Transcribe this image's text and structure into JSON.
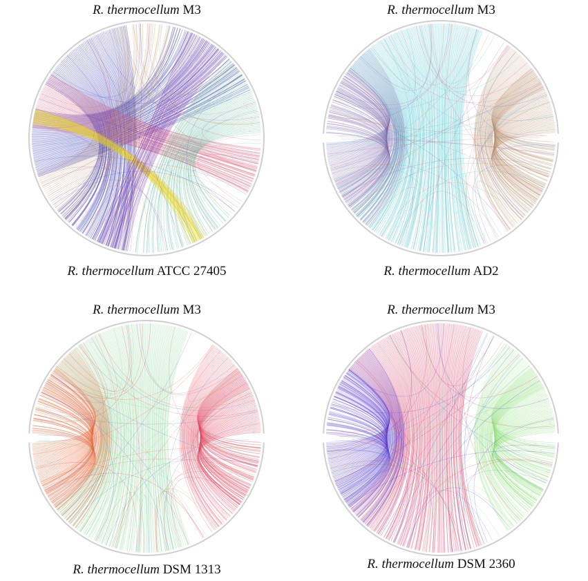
{
  "panels": [
    {
      "top_label": {
        "species": "R. thermocellum",
        "strain": "M3"
      },
      "bottom_label": {
        "species": "R. thermocellum",
        "strain": "ATCC 27405"
      },
      "colors": [
        "#3b3bb8",
        "#d94b6a",
        "#5fb8a0",
        "#e8d62a",
        "#7a3aa8",
        "#b48a6a"
      ]
    },
    {
      "top_label": {
        "species": "R. thermocellum",
        "strain": "M3"
      },
      "bottom_label": {
        "species": "R. thermocellum",
        "strain": "AD2"
      },
      "colors": [
        "#4fc4cc",
        "#b8906a",
        "#7a6ab0",
        "#d96a8a"
      ]
    },
    {
      "top_label": {
        "species": "R. thermocellum",
        "strain": "M3"
      },
      "bottom_label": {
        "species": "R. thermocellum",
        "strain": "DSM 1313"
      },
      "colors": [
        "#8ed69a",
        "#e0405a",
        "#e86a3a",
        "#5a7ad0"
      ]
    },
    {
      "top_label": {
        "species": "R. thermocellum",
        "strain": "M3"
      },
      "bottom_label": {
        "species": "R. thermocellum",
        "strain": "DSM 2360"
      },
      "colors": [
        "#d84068",
        "#5a3ad0",
        "#8ee07a",
        "#4a8ad0"
      ]
    }
  ]
}
